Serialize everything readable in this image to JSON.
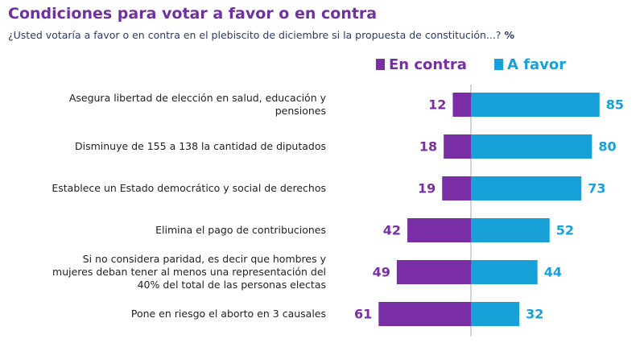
{
  "chart_data": {
    "type": "diverging_bar",
    "title": "Condiciones para votar a favor o en contra",
    "subtitle": "¿Usted votaría a favor o en contra en el plebiscito de diciembre si la propuesta de constitución...?",
    "subtitle_unit": "%",
    "categories": [
      "Asegura libertad de elección en salud, educación y pensiones",
      "Disminuye de 155 a 138 la cantidad de diputados",
      "Establece un Estado democrático y social de derechos",
      "Elimina el pago de contribuciones",
      "Si no considera paridad, es decir que hombres y mujeres deban tener al menos una representación del 40% del total de las personas electas",
      "Pone en riesgo el aborto en 3 causales"
    ],
    "series": [
      {
        "name": "En contra",
        "color": "#7a2ea6",
        "values": [
          12,
          18,
          19,
          42,
          49,
          61
        ]
      },
      {
        "name": "A favor",
        "color": "#17a1d8",
        "values": [
          85,
          80,
          73,
          52,
          44,
          32
        ]
      }
    ]
  }
}
